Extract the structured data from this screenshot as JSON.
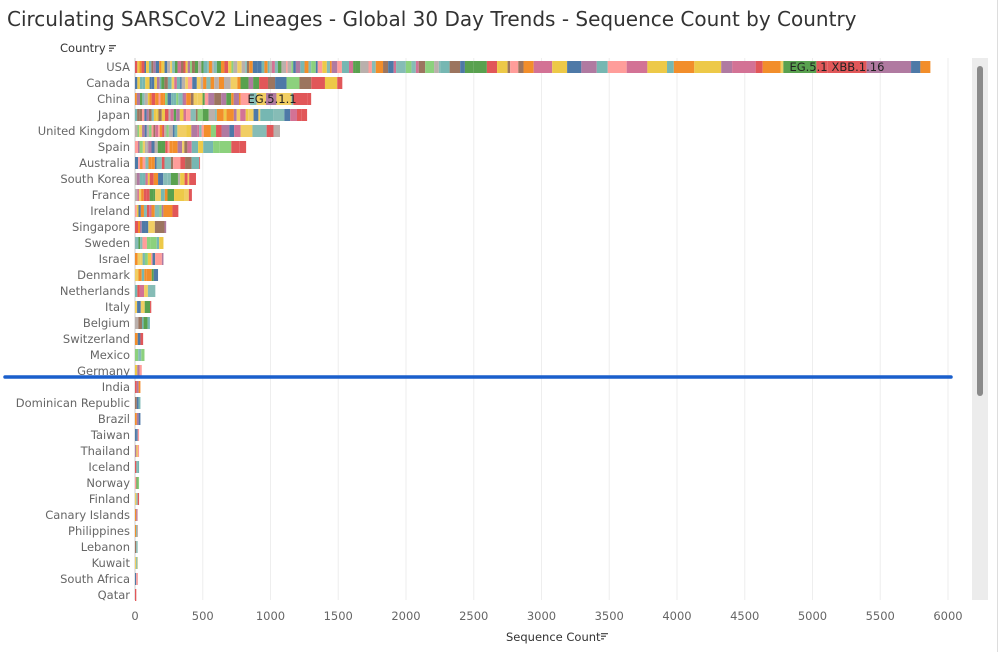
{
  "chart_data": {
    "type": "bar",
    "orientation": "horizontal",
    "stacked": true,
    "title": "Circulating SARSCoV2 Lineages - Global 30 Day Trends - Sequence Count by Country",
    "ylabel": "Country",
    "xlabel": "Sequence Count",
    "xlim": [
      0,
      6000
    ],
    "xticks": [
      0,
      500,
      1000,
      1500,
      2000,
      2500,
      3000,
      3500,
      4000,
      4500,
      5000,
      5500,
      6000
    ],
    "grid": true,
    "categories": [
      "USA",
      "Canada",
      "China",
      "Japan",
      "United Kingdom",
      "Spain",
      "Australia",
      "South Korea",
      "France",
      "Ireland",
      "Singapore",
      "Sweden",
      "Israel",
      "Denmark",
      "Netherlands",
      "Italy",
      "Belgium",
      "Switzerland",
      "Mexico",
      "Germany",
      "India",
      "Dominican Republic",
      "Brazil",
      "Taiwan",
      "Thailand",
      "Iceland",
      "Norway",
      "Finland",
      "Canary Islands",
      "Philippines",
      "Lebanon",
      "Kuwait",
      "South Africa",
      "Qatar"
    ],
    "values": [
      5870,
      1530,
      1300,
      1270,
      1070,
      820,
      480,
      450,
      420,
      320,
      230,
      210,
      210,
      170,
      150,
      120,
      110,
      60,
      70,
      50,
      40,
      40,
      40,
      30,
      30,
      30,
      30,
      30,
      20,
      20,
      20,
      20,
      20,
      10
    ],
    "annotations": [
      {
        "category": "USA",
        "text": "EG.5.1",
        "x_start": 4830
      },
      {
        "category": "USA",
        "text": "XBB.1.16",
        "x_start": 5140
      },
      {
        "category": "China",
        "text": "EG.5.1.1",
        "x_start": 830
      }
    ],
    "palette": [
      "#e15759",
      "#59a14f",
      "#f28e2b",
      "#edc948",
      "#4e79a7",
      "#ff9d9a",
      "#b07aa1",
      "#9c755f",
      "#bab0ac",
      "#76b7b2",
      "#8cd17d",
      "#d37295",
      "#86bcb6",
      "#f1ce63"
    ],
    "filter_indicator": "sort-icon"
  }
}
